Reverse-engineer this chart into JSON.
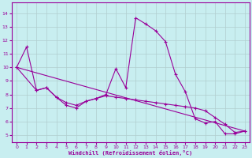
{
  "xlabel": "Windchill (Refroidissement éolien,°C)",
  "background_color": "#c8eef0",
  "grid_color": "#b0cece",
  "line_color": "#990099",
  "xlim": [
    -0.5,
    23.5
  ],
  "ylim": [
    4.5,
    14.8
  ],
  "xticks": [
    0,
    1,
    2,
    3,
    4,
    5,
    6,
    7,
    8,
    9,
    10,
    11,
    12,
    13,
    14,
    15,
    16,
    17,
    18,
    19,
    20,
    21,
    22,
    23
  ],
  "yticks": [
    5,
    6,
    7,
    8,
    9,
    10,
    11,
    12,
    13,
    14
  ],
  "y_main": [
    10.0,
    11.5,
    8.3,
    8.5,
    7.8,
    7.2,
    7.0,
    7.5,
    7.7,
    8.0,
    9.9,
    8.5,
    13.65,
    13.2,
    12.7,
    11.9,
    9.5,
    8.2,
    6.2,
    5.9,
    6.0,
    5.1,
    5.1,
    5.3
  ],
  "y_line2": [
    10.0,
    null,
    8.3,
    8.5,
    7.8,
    7.4,
    7.2,
    7.5,
    7.7,
    7.9,
    7.8,
    7.7,
    7.6,
    7.5,
    7.4,
    7.3,
    7.2,
    7.1,
    7.0,
    6.8,
    6.3,
    5.8,
    5.2,
    5.3
  ],
  "y_line3": [
    10.0,
    null,
    null,
    null,
    null,
    null,
    null,
    null,
    null,
    null,
    null,
    null,
    null,
    null,
    null,
    null,
    null,
    null,
    null,
    null,
    null,
    null,
    null,
    5.3
  ]
}
